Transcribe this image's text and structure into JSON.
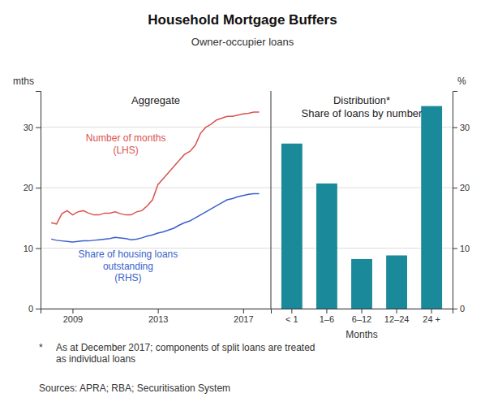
{
  "chart_data": [
    {
      "type": "line",
      "title": "Household Mortgage Buffers",
      "subtitle": "Owner-occupier loans",
      "annotations": [
        "Aggregate"
      ],
      "ylabel": "mths",
      "x": [
        2008.0,
        2008.25,
        2008.5,
        2008.75,
        2009.0,
        2009.25,
        2009.5,
        2009.75,
        2010.0,
        2010.25,
        2010.5,
        2010.75,
        2011.0,
        2011.25,
        2011.5,
        2011.75,
        2012.0,
        2012.25,
        2012.5,
        2012.75,
        2013.0,
        2013.25,
        2013.5,
        2013.75,
        2014.0,
        2014.25,
        2014.5,
        2014.75,
        2015.0,
        2015.25,
        2015.5,
        2015.75,
        2016.0,
        2016.25,
        2016.5,
        2016.75,
        2017.0,
        2017.25,
        2017.5,
        2017.75
      ],
      "xlim": [
        2007.5,
        2018.3
      ],
      "xticks": [
        2009,
        2013,
        2017
      ],
      "ylim": [
        0,
        36
      ],
      "yticks": [
        0,
        10,
        20,
        30
      ],
      "grid": true,
      "series": [
        {
          "name": "Number of months\n(LHS)",
          "color": "#d9534f",
          "values": [
            14.2,
            14.0,
            15.7,
            16.2,
            15.5,
            16.0,
            16.2,
            15.8,
            15.5,
            15.5,
            15.8,
            15.8,
            16.0,
            15.7,
            15.5,
            15.5,
            16.0,
            16.2,
            17.0,
            18.0,
            20.5,
            21.5,
            22.5,
            23.5,
            24.5,
            25.5,
            26.0,
            27.0,
            29.0,
            30.0,
            30.5,
            31.2,
            31.5,
            31.8,
            31.8,
            32.0,
            32.2,
            32.3,
            32.5,
            32.5
          ]
        },
        {
          "name": "Share of housing loans\noutstanding\n(RHS)",
          "color": "#3a5fcd",
          "values": [
            11.5,
            11.3,
            11.2,
            11.1,
            11.0,
            11.1,
            11.2,
            11.2,
            11.3,
            11.4,
            11.5,
            11.6,
            11.8,
            11.7,
            11.6,
            11.4,
            11.5,
            11.7,
            12.0,
            12.2,
            12.5,
            12.7,
            13.0,
            13.3,
            13.8,
            14.2,
            14.5,
            15.0,
            15.5,
            16.0,
            16.5,
            17.0,
            17.5,
            18.0,
            18.2,
            18.5,
            18.7,
            18.9,
            19.0,
            19.0
          ]
        }
      ]
    },
    {
      "type": "bar",
      "annotations": [
        "Distribution*\nShare of loans by number",
        "*",
        "As at December 2017; components of split loans are treated\nas individual loans",
        "Sources: APRA; RBA; Securitisation System"
      ],
      "xlabel": "Months",
      "ylabel": "%",
      "categories": [
        "< 1",
        "1–6",
        "6–12",
        "12–24",
        "24 +"
      ],
      "values": [
        27.3,
        20.7,
        8.2,
        8.8,
        33.5
      ],
      "color": "#1a8a9a",
      "ylim": [
        0,
        36
      ],
      "yticks": [
        0,
        10,
        20,
        30
      ],
      "grid": true
    }
  ]
}
